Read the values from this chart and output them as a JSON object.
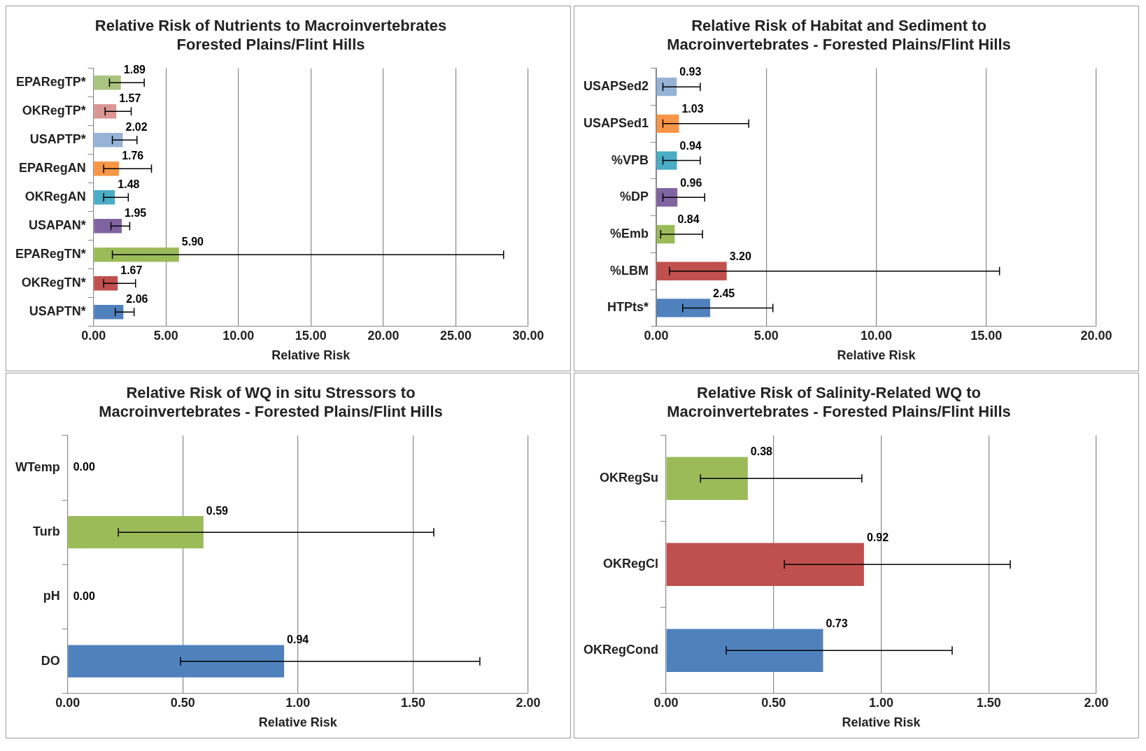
{
  "chart_data": [
    {
      "type": "bar",
      "orientation": "horizontal",
      "title": "Relative Risk of Nutrients to Macroinvertebrates\nForested Plains/Flint Hills",
      "xlabel": "Relative Risk",
      "categories": [
        "EPARegTP*",
        "OKRegTP*",
        "USAPTP*",
        "EPARegAN",
        "OKRegAN",
        "USAPAN*",
        "EPARegTN*",
        "OKRegTN*",
        "USAPTN*"
      ],
      "values": [
        1.89,
        1.57,
        2.02,
        1.76,
        1.48,
        1.95,
        5.9,
        1.67,
        2.06
      ],
      "colors": [
        "#a9c47f",
        "#d99694",
        "#95b3d7",
        "#f79646",
        "#4bacc6",
        "#8064a2",
        "#9bbb59",
        "#c0504d",
        "#4f81bd"
      ],
      "errors": [
        [
          1.1,
          3.5
        ],
        [
          0.8,
          2.6
        ],
        [
          1.3,
          3.0
        ],
        [
          0.7,
          4.0
        ],
        [
          0.7,
          2.4
        ],
        [
          1.2,
          2.5
        ],
        [
          1.3,
          28.3
        ],
        [
          0.7,
          2.9
        ],
        [
          1.5,
          2.8
        ]
      ],
      "value_labels": [
        "1.89",
        "1.57",
        "2.02",
        "1.76",
        "1.48",
        "1.95",
        "5.90",
        "1.67",
        "2.06"
      ],
      "xlim": [
        0,
        30
      ],
      "xticks": [
        {
          "value": 0,
          "label": "0.00"
        },
        {
          "value": 5,
          "label": "5.00"
        },
        {
          "value": 10,
          "label": "10.00"
        },
        {
          "value": 15,
          "label": "15.00"
        },
        {
          "value": 20,
          "label": "20.00"
        },
        {
          "value": 25,
          "label": "25.00"
        },
        {
          "value": 30,
          "label": "30.00"
        }
      ],
      "grid": "x"
    },
    {
      "type": "bar",
      "orientation": "horizontal",
      "title": "Relative Risk of Habitat and Sediment to\nMacroinvertebrates - Forested Plains/Flint Hills",
      "xlabel": "Relative Risk",
      "categories": [
        "USAPSed2",
        "USAPSed1",
        "%VPB",
        "%DP",
        "%Emb",
        "%LBM",
        "HTPts*"
      ],
      "values": [
        0.93,
        1.03,
        0.94,
        0.96,
        0.84,
        3.2,
        2.45
      ],
      "colors": [
        "#95b3d7",
        "#f79646",
        "#4bacc6",
        "#8064a2",
        "#9bbb59",
        "#c0504d",
        "#4f81bd"
      ],
      "errors": [
        [
          0.3,
          2.0
        ],
        [
          0.3,
          4.2
        ],
        [
          0.3,
          2.0
        ],
        [
          0.3,
          2.2
        ],
        [
          0.2,
          2.1
        ],
        [
          0.6,
          15.6
        ],
        [
          1.2,
          5.3
        ]
      ],
      "value_labels": [
        "0.93",
        "1.03",
        "0.94",
        "0.96",
        "0.84",
        "3.20",
        "2.45"
      ],
      "xlim": [
        0,
        20
      ],
      "xticks": [
        {
          "value": 0,
          "label": "0.00"
        },
        {
          "value": 5,
          "label": "5.00"
        },
        {
          "value": 10,
          "label": "10.00"
        },
        {
          "value": 15,
          "label": "15.00"
        },
        {
          "value": 20,
          "label": "20.00"
        }
      ],
      "grid": "x"
    },
    {
      "type": "bar",
      "orientation": "horizontal",
      "title": "Relative Risk of WQ in situ Stressors to\nMacroinvertebrates - Forested Plains/Flint Hills",
      "xlabel": "Relative Risk",
      "categories": [
        "WTemp",
        "Turb",
        "pH",
        "DO"
      ],
      "values": [
        0,
        0.59,
        0,
        0.94
      ],
      "colors": [
        "#8064a2",
        "#9bbb59",
        "#c0504d",
        "#4f81bd"
      ],
      "errors": [
        null,
        [
          0.22,
          1.59
        ],
        null,
        [
          0.49,
          1.79
        ]
      ],
      "value_labels": [
        "0.00",
        "0.59",
        "0.00",
        "0.94"
      ],
      "xlim": [
        0,
        2
      ],
      "xticks": [
        {
          "value": 0,
          "label": "0.00"
        },
        {
          "value": 0.5,
          "label": "0.50"
        },
        {
          "value": 1,
          "label": "1.00"
        },
        {
          "value": 1.5,
          "label": "1.50"
        },
        {
          "value": 2,
          "label": "2.00"
        }
      ],
      "grid": "x"
    },
    {
      "type": "bar",
      "orientation": "horizontal",
      "title": "Relative Risk of Salinity-Related WQ to\nMacroinvertebrates - Forested Plains/Flint Hills",
      "xlabel": "Relative Risk",
      "categories": [
        "OKRegSu",
        "OKRegCl",
        "OKRegCond"
      ],
      "values": [
        0.38,
        0.92,
        0.73
      ],
      "colors": [
        "#9bbb59",
        "#c0504d",
        "#4f81bd"
      ],
      "errors": [
        [
          0.16,
          0.91
        ],
        [
          0.55,
          1.6
        ],
        [
          0.28,
          1.33
        ]
      ],
      "value_labels": [
        "0.38",
        "0.92",
        "0.73"
      ],
      "xlim": [
        0,
        2
      ],
      "xticks": [
        {
          "value": 0,
          "label": "0.00"
        },
        {
          "value": 0.5,
          "label": "0.50"
        },
        {
          "value": 1,
          "label": "1.00"
        },
        {
          "value": 1.5,
          "label": "1.50"
        },
        {
          "value": 2,
          "label": "2.00"
        }
      ],
      "grid": "x"
    }
  ]
}
